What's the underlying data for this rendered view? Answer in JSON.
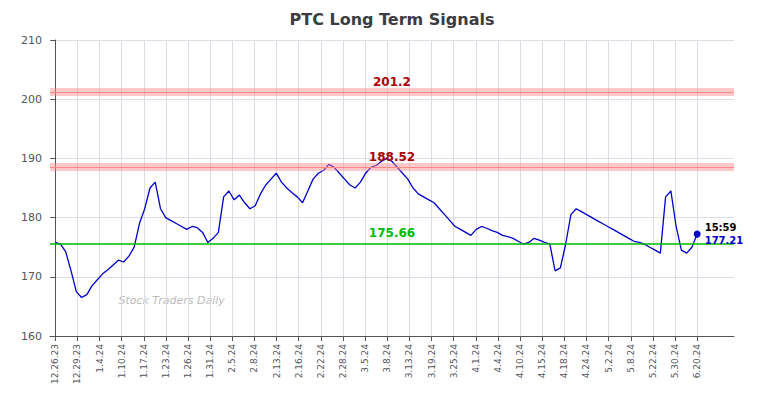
{
  "chart_data": {
    "type": "line",
    "title": "PTC Long Term Signals",
    "color": "#0000cc",
    "x": [
      0,
      1,
      2,
      3,
      4,
      5,
      6,
      7,
      8,
      9,
      10,
      11,
      12,
      13,
      14,
      15,
      16,
      17,
      18,
      19,
      20,
      21,
      22,
      23,
      24,
      25,
      26,
      27,
      28,
      29,
      30,
      31,
      32,
      33,
      34,
      35,
      36,
      37,
      38,
      39,
      40,
      41,
      42,
      43,
      44,
      45,
      46,
      47,
      48,
      49,
      50,
      51,
      52,
      53,
      54,
      55,
      56,
      57,
      58,
      59,
      60,
      61,
      62,
      63,
      64,
      65,
      66,
      67,
      68,
      69,
      70,
      71,
      72,
      73,
      74,
      75,
      76,
      77,
      78,
      79,
      80,
      81,
      82,
      83,
      84,
      85,
      86,
      87,
      88,
      89,
      90,
      91,
      92,
      93,
      94,
      95,
      96,
      97,
      98,
      99,
      100,
      101,
      102,
      103,
      104,
      105,
      106,
      107,
      108,
      109,
      110,
      111,
      112,
      113,
      114,
      115,
      116,
      117,
      118,
      119,
      120,
      121,
      122
    ],
    "values": [
      175.8,
      175.5,
      174.2,
      171.0,
      167.5,
      166.5,
      167.0,
      168.5,
      169.5,
      170.5,
      171.2,
      172.0,
      172.8,
      172.5,
      173.5,
      175.0,
      179.0,
      181.5,
      185.0,
      186.0,
      181.5,
      180.0,
      179.5,
      179.0,
      178.5,
      178.0,
      178.5,
      178.3,
      177.5,
      175.8,
      176.5,
      177.5,
      183.5,
      184.5,
      183.0,
      183.8,
      182.5,
      181.5,
      182.0,
      184.0,
      185.5,
      186.5,
      187.5,
      186.0,
      185.0,
      184.2,
      183.5,
      182.5,
      184.5,
      186.5,
      187.5,
      188.0,
      189.0,
      188.5,
      187.5,
      186.5,
      185.5,
      185.0,
      186.0,
      187.5,
      188.5,
      188.8,
      189.5,
      190.0,
      189.5,
      188.5,
      187.5,
      186.5,
      185.0,
      184.0,
      183.5,
      183.0,
      182.5,
      181.5,
      180.5,
      179.5,
      178.5,
      178.0,
      177.5,
      177.0,
      178.0,
      178.5,
      178.2,
      177.8,
      177.5,
      177.0,
      176.8,
      176.5,
      176.0,
      175.5,
      175.8,
      176.5,
      176.2,
      175.8,
      175.5,
      171.0,
      171.5,
      175.5,
      180.5,
      181.5,
      181.0,
      180.5,
      180.0,
      179.5,
      179.0,
      178.5,
      178.0,
      177.5,
      177.0,
      176.5,
      176.0,
      175.8,
      175.5,
      175.0,
      174.5,
      174.0,
      183.5,
      184.5,
      178.5,
      174.5,
      174.0,
      175.0,
      177.21
    ],
    "xlim": [
      -1,
      129
    ],
    "xticks": [
      {
        "value": 0,
        "label": "12.26.23"
      },
      {
        "value": 4.206896551724138,
        "label": "12.29.23"
      },
      {
        "value": 8.413793103448276,
        "label": "1.4.24"
      },
      {
        "value": 12.620689655172415,
        "label": "1.10.24"
      },
      {
        "value": 16.82758620689655,
        "label": "1.17.24"
      },
      {
        "value": 21.03448275862069,
        "label": "1.23.24"
      },
      {
        "value": 25.24137931034483,
        "label": "1.26.24"
      },
      {
        "value": 29.448275862068964,
        "label": "1.31.24"
      },
      {
        "value": 33.6551724137931,
        "label": "2.5.24"
      },
      {
        "value": 37.86206896551724,
        "label": "2.8.24"
      },
      {
        "value": 42.06896551724138,
        "label": "2.13.24"
      },
      {
        "value": 46.275862068965516,
        "label": "2.16.24"
      },
      {
        "value": 50.48275862068966,
        "label": "2.22.24"
      },
      {
        "value": 54.689655172413794,
        "label": "2.28.24"
      },
      {
        "value": 58.89655172413793,
        "label": "3.5.24"
      },
      {
        "value": 63.10344827586207,
        "label": "3.8.24"
      },
      {
        "value": 67.3103448275862,
        "label": "3.13.24"
      },
      {
        "value": 71.51724137931035,
        "label": "3.19.24"
      },
      {
        "value": 75.72413793103448,
        "label": "3.25.24"
      },
      {
        "value": 79.93103448275862,
        "label": "4.1.24"
      },
      {
        "value": 84.13793103448276,
        "label": "4.4.24"
      },
      {
        "value": 88.34482758620689,
        "label": "4.10.24"
      },
      {
        "value": 92.55172413793103,
        "label": "4.15.24"
      },
      {
        "value": 96.75862068965517,
        "label": "4.18.24"
      },
      {
        "value": 100.96551724137932,
        "label": "4.24.24"
      },
      {
        "value": 105.17241379310344,
        "label": "5.2.24"
      },
      {
        "value": 109.37931034482759,
        "label": "5.8.24"
      },
      {
        "value": 113.58620689655173,
        "label": "5.22.24"
      },
      {
        "value": 117.79310344827586,
        "label": "5.30.24"
      },
      {
        "value": 122,
        "label": "6.20.24"
      }
    ],
    "ylim": [
      160,
      210
    ],
    "yticks": [
      160,
      170,
      180,
      190,
      200,
      210
    ],
    "grid": true,
    "hlines": [
      {
        "value": 201.2,
        "label": "201.2",
        "color": "#ff8888",
        "label_color": "#aa0000",
        "band": true
      },
      {
        "value": 188.52,
        "label": "188.52",
        "color": "#ff8888",
        "label_color": "#aa0000",
        "band": true
      },
      {
        "value": 175.66,
        "label": "175.66",
        "color": "#00bb00",
        "label_color": "#00bb00",
        "band": false
      }
    ],
    "end_labels": [
      "15:59",
      "177.21"
    ],
    "watermark": "Stock Traders Daily"
  }
}
